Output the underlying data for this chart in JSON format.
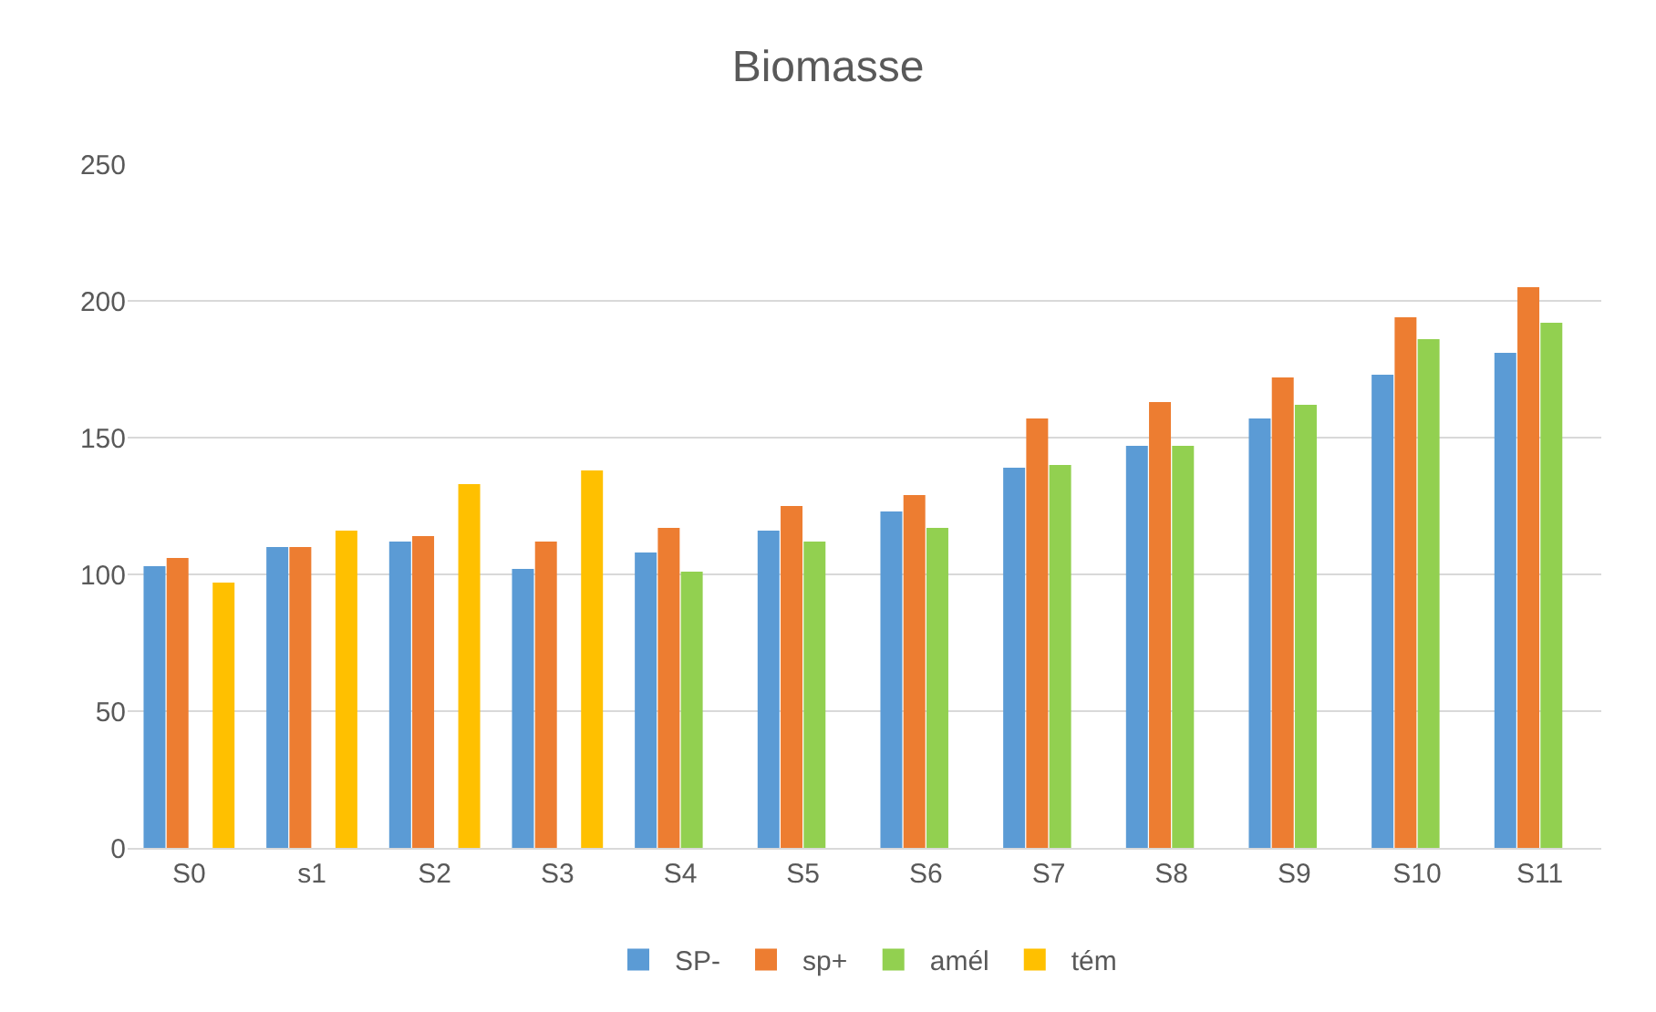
{
  "chart_data": {
    "type": "bar",
    "title": "Biomasse",
    "categories": [
      "S0",
      "s1",
      "S2",
      "S3",
      "S4",
      "S5",
      "S6",
      "S7",
      "S8",
      "S9",
      "S10",
      "S11"
    ],
    "series": [
      {
        "name": "SP-",
        "color": "#5b9bd5",
        "values": [
          103,
          110,
          112,
          102,
          108,
          116,
          123,
          139,
          147,
          157,
          173,
          181
        ]
      },
      {
        "name": "sp+",
        "color": "#ed7d31",
        "values": [
          106,
          110,
          114,
          112,
          117,
          125,
          129,
          157,
          163,
          172,
          194,
          205
        ]
      },
      {
        "name": "amél",
        "color": "#92d050",
        "values": [
          0,
          0,
          0,
          0,
          101,
          112,
          117,
          140,
          147,
          162,
          186,
          192
        ]
      },
      {
        "name": "tém",
        "color": "#ffc000",
        "values": [
          97,
          116,
          133,
          138,
          0,
          0,
          0,
          0,
          0,
          0,
          0,
          0
        ]
      }
    ],
    "ylim": [
      0,
      250
    ],
    "yticks": [
      0,
      50,
      100,
      150,
      200,
      250
    ],
    "grid": "y",
    "legend": "bottom"
  }
}
